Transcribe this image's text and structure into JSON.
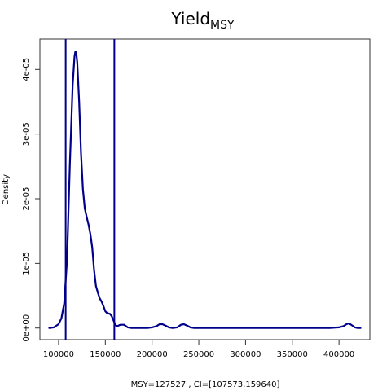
{
  "chart_data": {
    "type": "line",
    "title": "Yield",
    "title_subscript": "MSY",
    "xlabel": "MSY=127527 , CI=[107573,159640]",
    "ylabel": "Density",
    "xlim": [
      80000,
      433000
    ],
    "ylim": [
      -1.8e-06,
      4.47e-05
    ],
    "x_ticks": [
      100000,
      150000,
      200000,
      250000,
      300000,
      350000,
      400000
    ],
    "x_tick_labels": [
      "100000",
      "150000",
      "200000",
      "250000",
      "300000",
      "350000",
      "400000"
    ],
    "y_ticks": [
      0,
      1e-05,
      2e-05,
      3e-05,
      4e-05
    ],
    "y_tick_labels": [
      "0e+00",
      "1e-05",
      "2e-05",
      "3e-05",
      "4e-05"
    ],
    "grid": false,
    "series": [
      {
        "color": "#00008b",
        "x": [
          90000,
          95000,
          100000,
          103000,
          106000,
          109000,
          112000,
          115000,
          117000,
          118000,
          119000,
          120000,
          122000,
          124000,
          126000,
          128000,
          130000,
          132000,
          134000,
          136000,
          138000,
          140000,
          142000,
          144000,
          146000,
          148000,
          150000,
          152000,
          155000,
          157000,
          159000,
          161000,
          163000,
          166000,
          170000,
          174000,
          178000,
          182000,
          187000,
          195000,
          200000,
          205000,
          208000,
          211000,
          214000,
          218000,
          222000,
          227000,
          231000,
          234000,
          237000,
          241000,
          245000,
          260000,
          300000,
          350000,
          390000,
          400000,
          405000,
          408000,
          410000,
          412000,
          414000,
          417000,
          420000,
          423000
        ],
        "y": [
          0,
          1e-07,
          6e-07,
          1.5e-06,
          3.8e-06,
          1.05e-05,
          2.5e-05,
          3.75e-05,
          4.2e-05,
          4.28e-05,
          4.25e-05,
          4.1e-05,
          3.5e-05,
          2.7e-05,
          2.15e-05,
          1.85e-05,
          1.72e-05,
          1.6e-05,
          1.45e-05,
          1.25e-05,
          9e-06,
          6.5e-06,
          5.5e-06,
          4.6e-06,
          4.1e-06,
          3.4e-06,
          2.6e-06,
          2.3e-06,
          2.2e-06,
          1.8e-06,
          1.1e-06,
          4e-07,
          3e-07,
          5e-07,
          5e-07,
          1e-07,
          0,
          0,
          0,
          0,
          1e-07,
          3e-07,
          6e-07,
          6e-07,
          4e-07,
          1e-07,
          0,
          1e-07,
          5e-07,
          6e-07,
          4e-07,
          1e-07,
          0,
          0,
          0,
          0,
          0,
          1e-07,
          3e-07,
          6e-07,
          7e-07,
          6e-07,
          4e-07,
          1e-07,
          0,
          0
        ]
      }
    ],
    "vertical_lines": [
      107573,
      159640
    ],
    "vertical_line_color": "#00008b"
  }
}
